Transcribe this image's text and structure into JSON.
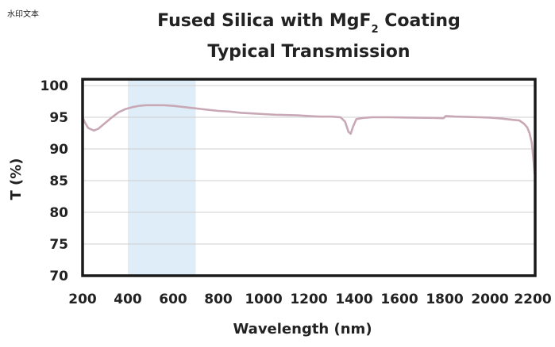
{
  "watermark": "水印文本",
  "chart_data": {
    "type": "line",
    "title_line1_main": "Fused Silica with MgF",
    "title_line1_sub": "2",
    "title_line1_end": " Coating",
    "title_line2": "Typical Transmission",
    "xlabel": "Wavelength (nm)",
    "ylabel": "T (%)",
    "xlim": [
      200,
      2200
    ],
    "ylim": [
      70,
      101
    ],
    "xticks": [
      200,
      400,
      600,
      800,
      1000,
      1200,
      1400,
      1600,
      1800,
      2000,
      2200
    ],
    "yticks": [
      70,
      75,
      80,
      85,
      90,
      95,
      100
    ],
    "grid": true,
    "highlight_band": [
      400,
      700
    ],
    "colors": {
      "line": "#c9a8b6",
      "band": "#deedf7",
      "grid": "#cfcfcf",
      "frame": "#1a1a1a"
    },
    "series": [
      {
        "x": [
          200,
          210,
          225,
          250,
          270,
          300,
          330,
          360,
          390,
          420,
          450,
          480,
          520,
          560,
          600,
          650,
          700,
          750,
          800,
          850,
          900,
          950,
          1000,
          1050,
          1100,
          1150,
          1200,
          1250,
          1300,
          1340,
          1360,
          1375,
          1385,
          1395,
          1410,
          1440,
          1480,
          1550,
          1650,
          1750,
          1795,
          1805,
          1850,
          1900,
          1950,
          2000,
          2050,
          2100,
          2130,
          2150,
          2165,
          2175,
          2185,
          2192,
          2198
        ],
        "y": [
          95.0,
          94.2,
          93.3,
          92.9,
          93.2,
          94.1,
          95.0,
          95.8,
          96.3,
          96.6,
          96.8,
          96.9,
          96.9,
          96.9,
          96.8,
          96.6,
          96.4,
          96.2,
          96.0,
          95.9,
          95.7,
          95.6,
          95.5,
          95.4,
          95.35,
          95.3,
          95.2,
          95.1,
          95.1,
          95.0,
          94.3,
          92.7,
          92.4,
          93.5,
          94.7,
          94.9,
          95.0,
          95.0,
          94.95,
          94.9,
          94.85,
          95.2,
          95.1,
          95.05,
          95.0,
          94.95,
          94.8,
          94.6,
          94.5,
          94.0,
          93.4,
          92.5,
          91.0,
          88.5,
          86.0
        ]
      }
    ]
  }
}
